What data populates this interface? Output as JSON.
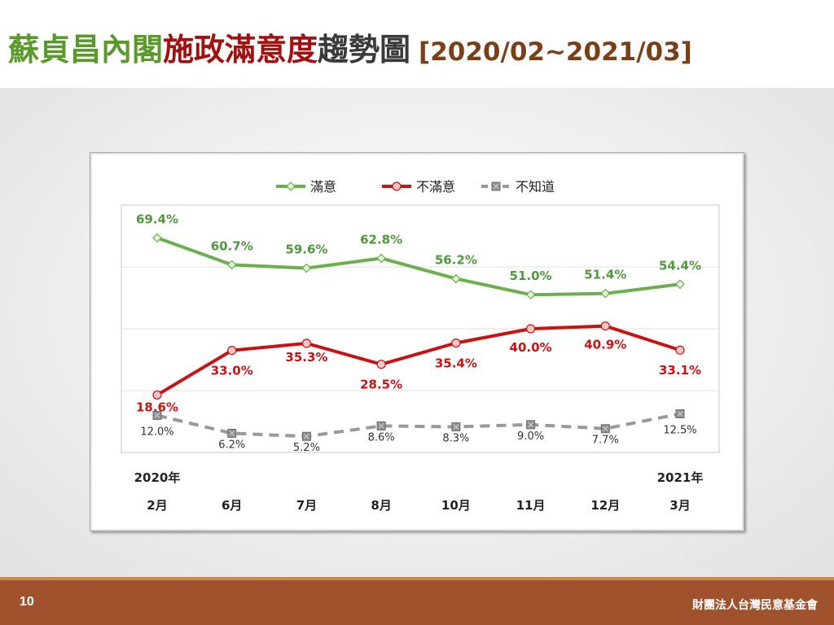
{
  "slide": {
    "title_part1": "蘇貞昌內閣",
    "title_part2": "施政滿意度",
    "title_part3": "趨勢圖",
    "title_range": "[2020/02~2021/03]",
    "page_number": "10",
    "organization": "財團法人台灣民意基金會",
    "colors": {
      "green": "#5a9a2a",
      "red": "#a21010",
      "footer": "#a0522d"
    }
  },
  "chart_data": {
    "type": "line",
    "categories": [
      "2月",
      "6月",
      "7月",
      "8月",
      "10月",
      "11月",
      "12月",
      "3月"
    ],
    "year_labels": {
      "start": "2020年",
      "end": "2021年"
    },
    "series": [
      {
        "name": "滿意",
        "color": "#6ab04c",
        "marker": "diamond",
        "dash": false,
        "values": [
          69.4,
          60.7,
          59.6,
          62.8,
          56.2,
          51.0,
          51.4,
          54.4
        ],
        "labels": [
          "69.4%",
          "60.7%",
          "59.6%",
          "62.8%",
          "56.2%",
          "51.0%",
          "51.4%",
          "54.4%"
        ]
      },
      {
        "name": "不滿意",
        "color": "#cc1111",
        "marker": "circle",
        "dash": false,
        "values": [
          18.6,
          33.0,
          35.3,
          28.5,
          35.4,
          40.0,
          40.9,
          33.1
        ],
        "labels": [
          "18.6%",
          "33.0%",
          "35.3%",
          "28.5%",
          "35.4%",
          "40.0%",
          "40.9%",
          "33.1%"
        ]
      },
      {
        "name": "不知道",
        "color": "#999999",
        "marker": "square-x",
        "dash": true,
        "values": [
          12.0,
          6.2,
          5.2,
          8.6,
          8.3,
          9.0,
          7.7,
          12.5
        ],
        "labels": [
          "12.0%",
          "6.2%",
          "5.2%",
          "8.6%",
          "8.3%",
          "9.0%",
          "7.7%",
          "12.5%"
        ]
      }
    ],
    "ylim": [
      0,
      80
    ],
    "grid": true,
    "legend": "top-center"
  }
}
